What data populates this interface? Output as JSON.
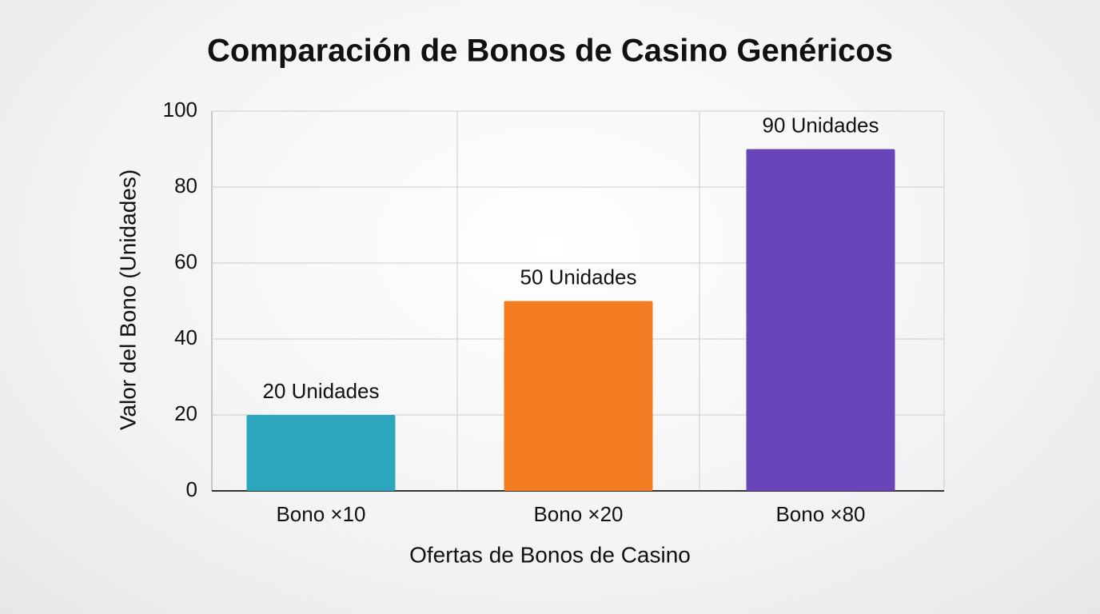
{
  "chart_data": {
    "type": "bar",
    "title": "Comparación de Bonos de Casino Genéricos",
    "x_label": "Ofertas de Bonos de Casino",
    "y_label": "Valor del Bono (Unidades)",
    "categories": [
      "Bono ×10",
      "Bono ×20",
      "Bono ×80"
    ],
    "values": [
      20,
      50,
      90
    ],
    "value_labels": [
      "20 Unidades",
      "50 Unidades",
      "90 Unidades"
    ],
    "colors": [
      "#2ba6bd",
      "#f47c22",
      "#6a45b9"
    ],
    "ylim": [
      0,
      100
    ],
    "yticks": [
      0,
      20,
      40,
      60,
      80,
      100
    ],
    "grid": true
  }
}
